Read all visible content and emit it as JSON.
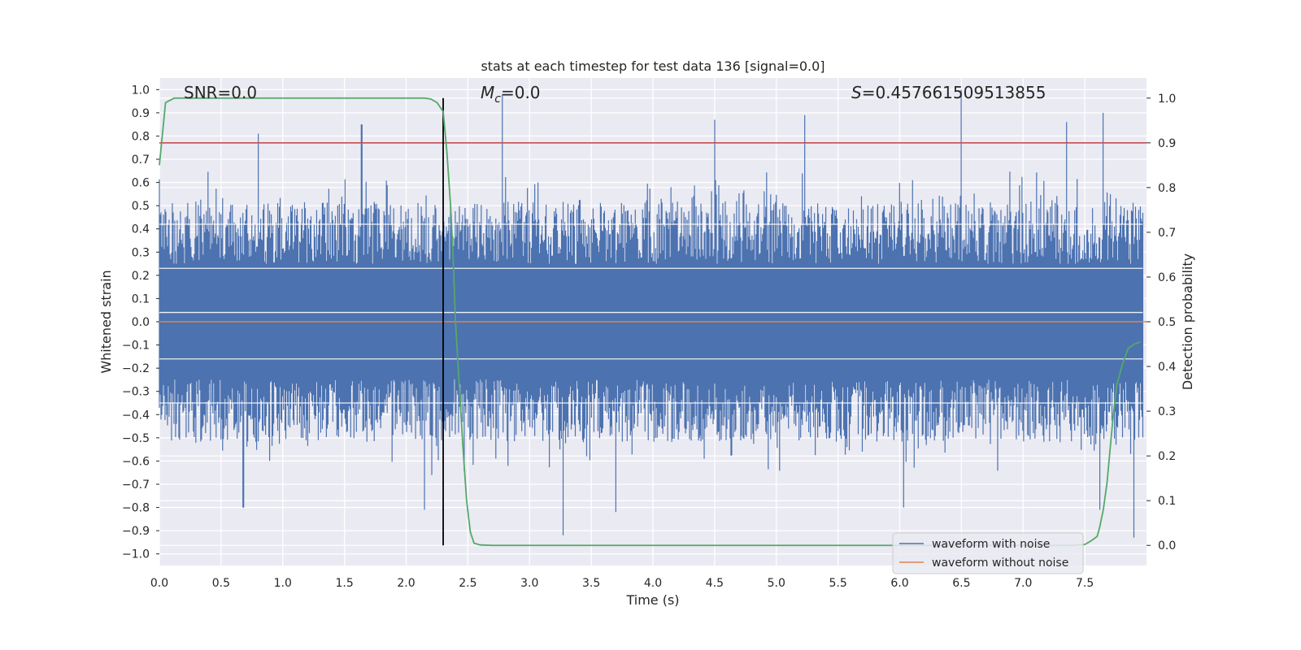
{
  "chart_data": {
    "type": "line",
    "title": "stats at each timestep for test data 136 [signal=0.0]",
    "xlabel": "Time (s)",
    "ylabel": "Whitened strain",
    "y2label": "Detection probability",
    "xlim": [
      0.0,
      8.0
    ],
    "ylim": [
      -1.05,
      1.05
    ],
    "y2lim": [
      -0.045,
      1.045
    ],
    "xticks": [
      0.0,
      0.5,
      1.0,
      1.5,
      2.0,
      2.5,
      3.0,
      3.5,
      4.0,
      4.5,
      5.0,
      5.5,
      6.0,
      6.5,
      7.0,
      7.5
    ],
    "xtick_labels": [
      "0.0",
      "0.5",
      "1.0",
      "1.5",
      "2.0",
      "2.5",
      "3.0",
      "3.5",
      "4.0",
      "4.5",
      "5.0",
      "5.5",
      "6.0",
      "6.5",
      "7.0",
      "7.5"
    ],
    "yticks": [
      1.0,
      0.9,
      0.8,
      0.7,
      0.6,
      0.5,
      0.4,
      0.3,
      0.2,
      0.1,
      0.0,
      -0.1,
      -0.2,
      -0.3,
      -0.4,
      -0.5,
      -0.6,
      -0.7,
      -0.8,
      -0.9,
      -1.0
    ],
    "ytick_labels": [
      "1.0",
      "0.9",
      "0.8",
      "0.7",
      "0.6",
      "0.5",
      "0.4",
      "0.3",
      "0.2",
      "0.1",
      "0.0",
      "−0.1",
      "−0.2",
      "−0.3",
      "−0.4",
      "−0.5",
      "−0.6",
      "−0.7",
      "−0.8",
      "−0.9",
      "−1.0"
    ],
    "y2ticks": [
      1.0,
      0.9,
      0.8,
      0.7,
      0.6,
      0.5,
      0.4,
      0.3,
      0.2,
      0.1,
      0.0
    ],
    "y2tick_labels": [
      "1.0",
      "0.9",
      "0.8",
      "0.7",
      "0.6",
      "0.5",
      "0.4",
      "0.3",
      "0.2",
      "0.1",
      "0.0"
    ],
    "grid": true,
    "legend_position": "bottom-right",
    "annotations": {
      "snr": "SNR=0.0",
      "mc_symbol": "M",
      "mc_subscript": "c",
      "mc_value": "=0.0",
      "s_symbol": "S",
      "s_value": "=0.457661509513855"
    },
    "threshold": 0.9,
    "marker_time": 2.3,
    "noise_envelope": {
      "description_free": true,
      "upper_typical": 0.45,
      "lower_typical": -0.45,
      "peaks_up": [
        [
          0.8,
          0.81
        ],
        [
          1.64,
          0.85
        ],
        [
          2.78,
          0.98
        ],
        [
          4.5,
          0.87
        ],
        [
          5.23,
          0.89
        ],
        [
          6.5,
          1.0
        ],
        [
          7.35,
          0.86
        ],
        [
          7.65,
          0.9
        ]
      ],
      "peaks_down": [
        [
          0.68,
          -0.8
        ],
        [
          2.15,
          -0.81
        ],
        [
          3.27,
          -0.92
        ],
        [
          3.7,
          -0.82
        ],
        [
          6.03,
          -0.8
        ],
        [
          7.62,
          -0.81
        ],
        [
          7.9,
          -0.93
        ]
      ]
    },
    "series": [
      {
        "name": "waveform with noise",
        "color": "#4c72b0",
        "axis": "left"
      },
      {
        "name": "waveform without noise",
        "color": "#dd8452",
        "axis": "left",
        "x": [
          0.0,
          8.0
        ],
        "y": [
          0.0,
          0.0
        ]
      },
      {
        "color": "#55a868",
        "axis": "right",
        "x": [
          0.0,
          0.05,
          0.12,
          0.2,
          0.5,
          1.0,
          1.5,
          2.0,
          2.15,
          2.2,
          2.25,
          2.3,
          2.33,
          2.36,
          2.38,
          2.4,
          2.43,
          2.46,
          2.49,
          2.52,
          2.55,
          2.6,
          2.7,
          3.0,
          4.0,
          5.0,
          6.0,
          7.0,
          7.4,
          7.5,
          7.55,
          7.6,
          7.62,
          7.65,
          7.68,
          7.7,
          7.73,
          7.76,
          7.8,
          7.85,
          7.9,
          7.95
        ],
        "y": [
          0.85,
          0.99,
          1.0,
          1.0,
          1.0,
          1.0,
          1.0,
          1.0,
          1.0,
          0.998,
          0.99,
          0.97,
          0.88,
          0.76,
          0.65,
          0.5,
          0.36,
          0.22,
          0.1,
          0.03,
          0.005,
          0.001,
          0.0,
          0.0,
          0.0,
          0.0,
          0.0,
          0.0,
          0.0,
          0.002,
          0.01,
          0.02,
          0.04,
          0.08,
          0.14,
          0.2,
          0.29,
          0.36,
          0.4,
          0.44,
          0.45,
          0.455
        ]
      },
      {
        "color": "#c44e52",
        "axis": "right",
        "x": [
          0.0,
          8.0
        ],
        "y": [
          0.9,
          0.9
        ]
      }
    ]
  }
}
